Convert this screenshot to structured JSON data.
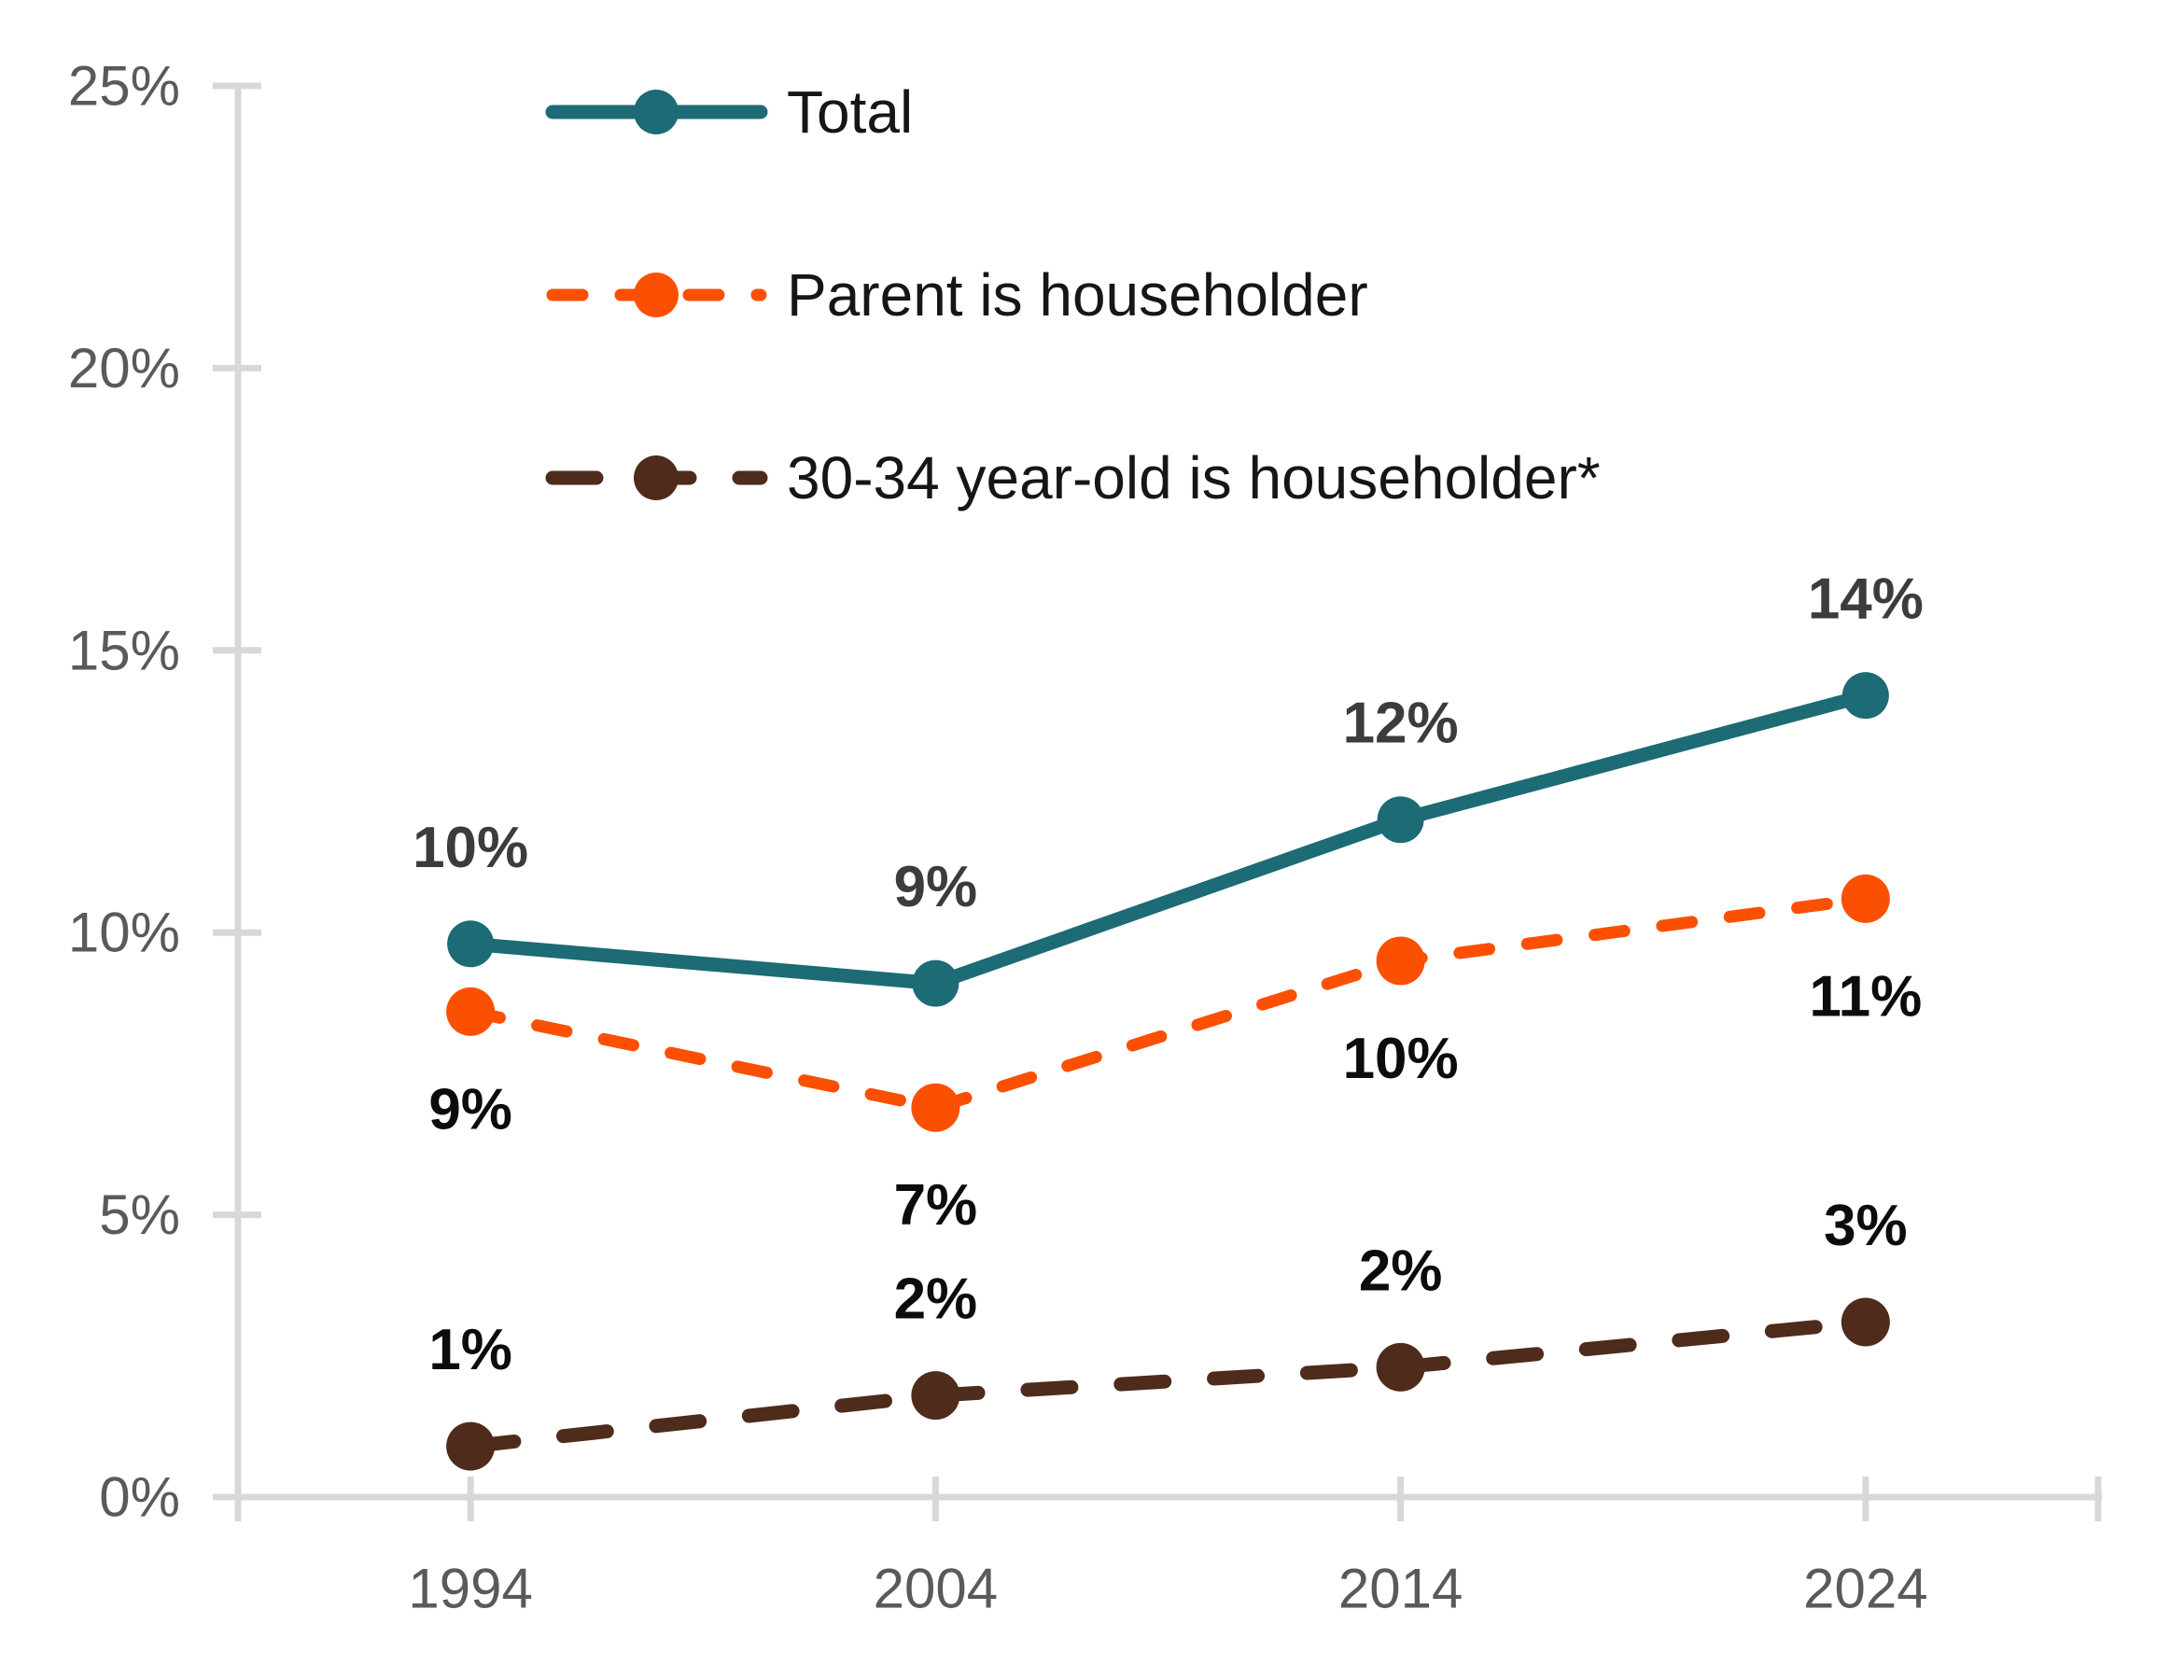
{
  "chart_data": {
    "type": "line",
    "categories": [
      "1994",
      "2004",
      "2014",
      "2024"
    ],
    "series": [
      {
        "name": "Total",
        "color": "#1c6b75",
        "line_width": 15,
        "dash": null,
        "marker_radius": 25,
        "values": [
          9.8,
          9.1,
          12.0,
          14.2
        ],
        "labels": [
          "10%",
          "9%",
          "12%",
          "14%"
        ],
        "label_position": "above",
        "label_color": "#3c3c3c"
      },
      {
        "name": "Parent is householder",
        "color": "#fb5002",
        "line_width": 13,
        "dash": "32 41",
        "marker_radius": 26,
        "values": [
          8.6,
          6.9,
          9.5,
          10.6
        ],
        "labels": [
          "9%",
          "7%",
          "10%",
          "11%"
        ],
        "label_position": "below",
        "label_color": "#0c0c0c"
      },
      {
        "name": "30-34 year-old is householder*",
        "color": "#4e2b1b",
        "line_width": 15,
        "dash": "47 53",
        "marker_radius": 26,
        "values": [
          0.9,
          1.8,
          2.3,
          3.1
        ],
        "labels": [
          "1%",
          "2%",
          "2%",
          "3%"
        ],
        "label_position": "above",
        "label_color": "#0c0c0c"
      }
    ],
    "title": "",
    "xlabel": "",
    "ylabel": "",
    "ylim": [
      0,
      25
    ],
    "ytick_step": 5,
    "ytick_labels": [
      "0%",
      "5%",
      "10%",
      "15%",
      "20%",
      "25%"
    ],
    "grid": false,
    "legend_position": "top-left-inside",
    "axis_color": "#d8d8d8",
    "tick_label_color": "#5a5a5a",
    "legend_text_color": "#161616"
  }
}
